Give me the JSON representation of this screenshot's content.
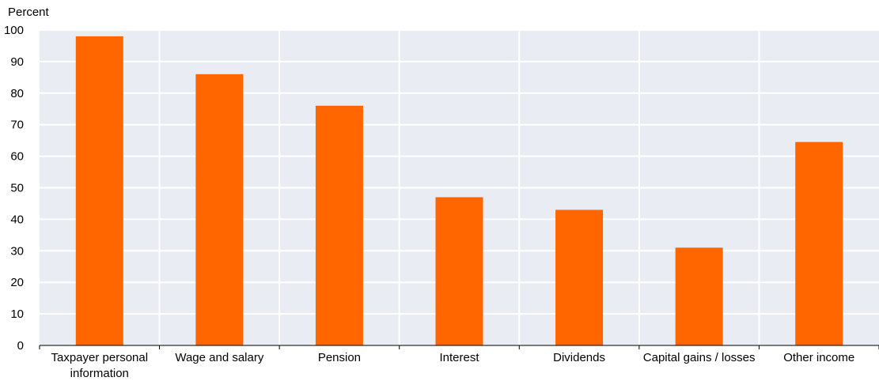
{
  "chart_data": {
    "type": "bar",
    "ylabel": "Percent",
    "ylim": [
      0,
      100
    ],
    "yticks": [
      0,
      10,
      20,
      30,
      40,
      50,
      60,
      70,
      80,
      90,
      100
    ],
    "categories": [
      [
        "Taxpayer personal",
        "information"
      ],
      [
        "Wage and salary"
      ],
      [
        "Pension"
      ],
      [
        "Interest"
      ],
      [
        "Dividends"
      ],
      [
        "Capital gains / losses"
      ],
      [
        "Other income"
      ]
    ],
    "values": [
      98,
      86,
      76,
      47,
      43,
      31,
      64.5
    ],
    "grid": true,
    "legend": "none",
    "colors": {
      "bar": "#ff6600",
      "plot_background": "#e9ecf2",
      "gridline": "#ffffff"
    }
  }
}
